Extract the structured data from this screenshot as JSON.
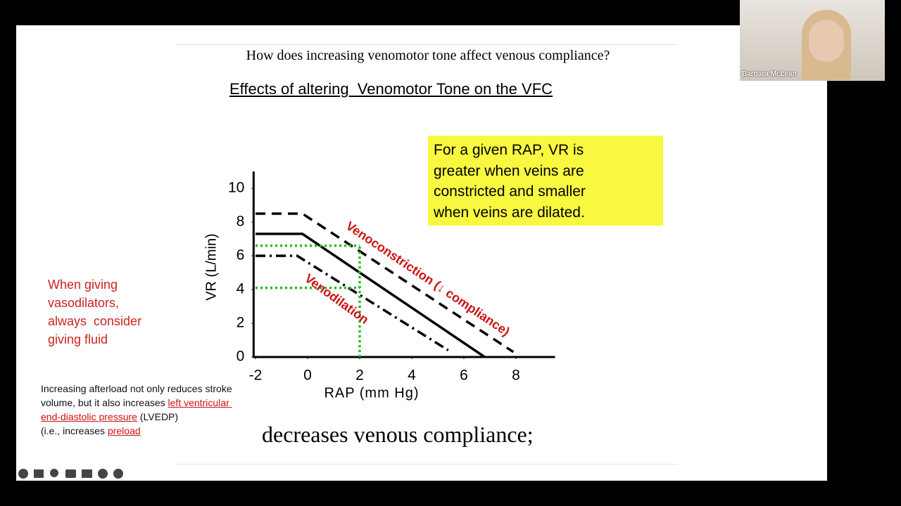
{
  "slide": {
    "question": "How does increasing venomotor tone affect venous compliance?",
    "heading": "Effects of altering  Venomotor Tone on the VFC",
    "callout": [
      "For a given RAP, VR is",
      "greater when veins are",
      "constricted and smaller",
      "when veins are dilated."
    ],
    "side_note": [
      "When giving",
      "vasodilators,",
      "always  consider",
      "giving fluid"
    ],
    "afterload_note": [
      "Increasing afterload not only reduces stroke volume, but it also increases ",
      "left ventricular end-diastolic pressure",
      " (LVEDP)",
      "(i.e., increases ",
      "preload"
    ],
    "caption": "decreases venous compliance; "
  },
  "participant": {
    "name": "Barbara McLean"
  },
  "chart_data": {
    "type": "line",
    "x_label": "RAP (mm Hg)",
    "y_label": "VR (L/min)",
    "xlim": [
      -2.1,
      9.5
    ],
    "ylim": [
      0,
      11
    ],
    "xticks": [
      -2,
      0,
      2,
      4,
      6,
      8
    ],
    "yticks": [
      0,
      2,
      4,
      6,
      8,
      10
    ],
    "series": [
      {
        "color": "#000000",
        "dash": "14 9",
        "x": [
          -2,
          -0.2,
          7.9
        ],
        "values": [
          8.5,
          8.5,
          0.3
        ]
      },
      {
        "color": "#000000",
        "dash": "none",
        "x": [
          -2,
          -0.2,
          6.8
        ],
        "values": [
          7.3,
          7.3,
          0
        ]
      },
      {
        "color": "#000000",
        "dash": "14 6 3 6",
        "x": [
          -2,
          -0.4,
          5.4
        ],
        "values": [
          6.0,
          6.0,
          0.4
        ]
      },
      {
        "color": "#22bb22",
        "dash": "3 4",
        "x": [
          -2,
          2
        ],
        "values": [
          6.6,
          6.6
        ]
      },
      {
        "color": "#22bb22",
        "dash": "3 4",
        "x": [
          -2,
          2
        ],
        "values": [
          4.1,
          4.1
        ]
      },
      {
        "color": "#22bb22",
        "dash": "3 4",
        "x": [
          2,
          2
        ],
        "values": [
          0,
          6.6
        ]
      }
    ],
    "annotations": [
      {
        "text": "Venoconstriction (↓ compliance)",
        "x": 4.6,
        "y": 4.6,
        "angle": 34,
        "color": "#cc1111"
      },
      {
        "text": "Venodilation",
        "x": 1.1,
        "y": 3.4,
        "angle": 36,
        "color": "#cc1111"
      }
    ]
  }
}
